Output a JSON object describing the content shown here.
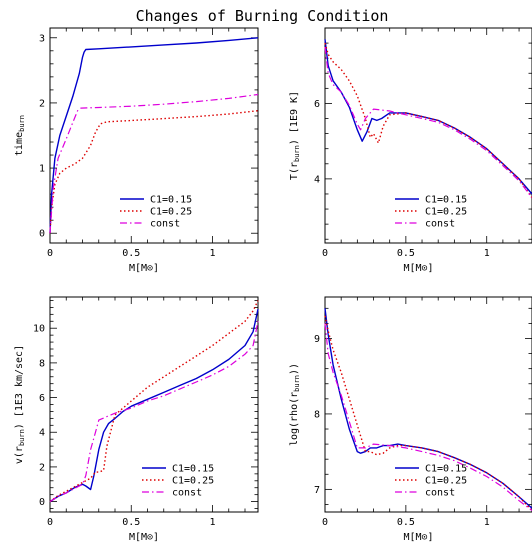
{
  "figure": {
    "title": "Changes of Burning Condition"
  },
  "series_styles": [
    {
      "name": "C1=0.15",
      "color": "#0000cc",
      "dash": "",
      "width": 1.4
    },
    {
      "name": "C1=0.25",
      "color": "#dd0000",
      "dash": "1.5,2.5",
      "width": 1.4
    },
    {
      "name": "const",
      "color": "#dd00dd",
      "dash": "7,3,1.5,3",
      "width": 1.2
    }
  ],
  "chart_data": [
    {
      "type": "line",
      "xlabel": "M[M⊙]",
      "ylabel": "time_burn",
      "xlim": [
        0,
        1.28
      ],
      "ylim": [
        -0.15,
        3.15
      ],
      "xticks": [
        0,
        0.5,
        1
      ],
      "xtick_labels": [
        "0",
        "0.5",
        "1"
      ],
      "yticks": [
        0,
        1,
        2,
        3
      ],
      "ytick_labels": [
        "0",
        "1",
        "2",
        "3"
      ],
      "legend": "bottom-center",
      "series": [
        {
          "name": "C1=0.15",
          "x": [
            0,
            0.01,
            0.03,
            0.06,
            0.1,
            0.14,
            0.18,
            0.2,
            0.21,
            0.22,
            0.3,
            0.5,
            0.7,
            0.9,
            1.1,
            1.28
          ],
          "y": [
            0,
            0.6,
            1.15,
            1.5,
            1.8,
            2.1,
            2.45,
            2.7,
            2.78,
            2.82,
            2.83,
            2.86,
            2.89,
            2.92,
            2.96,
            3.0
          ]
        },
        {
          "name": "C1=0.25",
          "x": [
            0,
            0.01,
            0.03,
            0.06,
            0.1,
            0.15,
            0.2,
            0.25,
            0.28,
            0.31,
            0.35,
            0.5,
            0.7,
            0.9,
            1.1,
            1.28
          ],
          "y": [
            0,
            0.4,
            0.75,
            0.92,
            1.0,
            1.06,
            1.15,
            1.35,
            1.55,
            1.68,
            1.71,
            1.73,
            1.76,
            1.79,
            1.83,
            1.88
          ]
        },
        {
          "name": "const",
          "x": [
            0,
            0.02,
            0.05,
            0.1,
            0.14,
            0.17,
            0.19,
            0.3,
            0.5,
            0.7,
            0.9,
            1.1,
            1.28
          ],
          "y": [
            0,
            0.7,
            1.15,
            1.45,
            1.7,
            1.88,
            1.92,
            1.93,
            1.95,
            1.98,
            2.02,
            2.07,
            2.13
          ]
        }
      ]
    },
    {
      "type": "line",
      "xlabel": "M[M⊙]",
      "ylabel": "T(r_burn) [1E9 K]",
      "xlim": [
        0,
        1.28
      ],
      "ylim": [
        2.3,
        8.0
      ],
      "xticks": [
        0,
        0.5,
        1
      ],
      "xtick_labels": [
        "0",
        "0.5",
        "1"
      ],
      "yticks": [
        4,
        6
      ],
      "ytick_labels": [
        "4",
        "6"
      ],
      "legend": "bottom-center",
      "series": [
        {
          "name": "C1=0.15",
          "x": [
            0,
            0.02,
            0.05,
            0.1,
            0.15,
            0.2,
            0.23,
            0.26,
            0.29,
            0.32,
            0.35,
            0.4,
            0.5,
            0.6,
            0.7,
            0.8,
            0.9,
            1.0,
            1.1,
            1.2,
            1.28
          ],
          "y": [
            7.7,
            7.0,
            6.6,
            6.3,
            5.9,
            5.3,
            5.0,
            5.25,
            5.6,
            5.55,
            5.6,
            5.75,
            5.75,
            5.65,
            5.55,
            5.35,
            5.1,
            4.8,
            4.4,
            4.0,
            3.6
          ]
        },
        {
          "name": "C1=0.25",
          "x": [
            0,
            0.02,
            0.05,
            0.1,
            0.15,
            0.2,
            0.25,
            0.28,
            0.3,
            0.33,
            0.36,
            0.4,
            0.5,
            0.6,
            0.7,
            0.8,
            0.9,
            1.0,
            1.1,
            1.2,
            1.28
          ],
          "y": [
            7.6,
            7.3,
            7.1,
            6.9,
            6.6,
            6.2,
            5.6,
            5.1,
            5.2,
            4.95,
            5.4,
            5.7,
            5.75,
            5.65,
            5.55,
            5.35,
            5.1,
            4.8,
            4.4,
            4.0,
            3.5
          ]
        },
        {
          "name": "const",
          "x": [
            0,
            0.02,
            0.05,
            0.1,
            0.15,
            0.2,
            0.22,
            0.25,
            0.3,
            0.4,
            0.5,
            0.6,
            0.7,
            0.8,
            0.9,
            1.0,
            1.1,
            1.2,
            1.28
          ],
          "y": [
            7.5,
            6.8,
            6.5,
            6.3,
            5.95,
            5.45,
            5.3,
            5.6,
            5.85,
            5.8,
            5.7,
            5.6,
            5.5,
            5.3,
            5.05,
            4.75,
            4.35,
            3.95,
            3.5
          ]
        }
      ]
    },
    {
      "type": "line",
      "xlabel": "M[M⊙]",
      "ylabel": "v(r_burn) [1E3 km/sec]",
      "xlim": [
        0,
        1.28
      ],
      "ylim": [
        -0.6,
        11.8
      ],
      "xticks": [
        0,
        0.5,
        1
      ],
      "xtick_labels": [
        "0",
        "0.5",
        "1"
      ],
      "yticks": [
        0,
        2,
        4,
        6,
        8,
        10
      ],
      "ytick_labels": [
        "0",
        "2",
        "4",
        "6",
        "8",
        "10"
      ],
      "legend": "bottom-right",
      "series": [
        {
          "name": "C1=0.15",
          "x": [
            0,
            0.05,
            0.1,
            0.15,
            0.2,
            0.22,
            0.25,
            0.27,
            0.3,
            0.33,
            0.36,
            0.4,
            0.45,
            0.5,
            0.6,
            0.7,
            0.8,
            0.9,
            1.0,
            1.1,
            1.2,
            1.25,
            1.28
          ],
          "y": [
            0,
            0.3,
            0.5,
            0.8,
            1.0,
            0.9,
            0.7,
            1.5,
            3.0,
            4.0,
            4.5,
            4.8,
            5.2,
            5.5,
            5.9,
            6.3,
            6.7,
            7.1,
            7.6,
            8.2,
            9.0,
            9.8,
            11.1
          ]
        },
        {
          "name": "C1=0.25",
          "x": [
            0,
            0.05,
            0.1,
            0.15,
            0.2,
            0.25,
            0.28,
            0.3,
            0.33,
            0.35,
            0.4,
            0.45,
            0.5,
            0.6,
            0.7,
            0.8,
            0.9,
            1.0,
            1.1,
            1.2,
            1.25,
            1.28
          ],
          "y": [
            0,
            0.35,
            0.6,
            0.85,
            1.1,
            1.35,
            1.7,
            1.7,
            1.8,
            3.2,
            5.0,
            5.4,
            5.8,
            6.6,
            7.2,
            7.8,
            8.4,
            9.0,
            9.7,
            10.4,
            11.0,
            11.6
          ]
        },
        {
          "name": "const",
          "x": [
            0,
            0.05,
            0.1,
            0.15,
            0.2,
            0.22,
            0.25,
            0.28,
            0.3,
            0.35,
            0.4,
            0.5,
            0.6,
            0.7,
            0.8,
            0.9,
            1.0,
            1.1,
            1.2,
            1.25,
            1.28
          ],
          "y": [
            0,
            0.3,
            0.5,
            0.75,
            1.0,
            1.5,
            3.0,
            4.0,
            4.7,
            4.9,
            5.1,
            5.4,
            5.8,
            6.1,
            6.5,
            6.9,
            7.3,
            7.8,
            8.5,
            9.0,
            10.4
          ]
        }
      ]
    },
    {
      "type": "line",
      "xlabel": "M[M⊙]",
      "ylabel": "log(rho(r_burn))",
      "xlim": [
        0,
        1.28
      ],
      "ylim": [
        6.7,
        9.55
      ],
      "xticks": [
        0,
        0.5,
        1
      ],
      "xtick_labels": [
        "0",
        "0.5",
        "1"
      ],
      "yticks": [
        7,
        8,
        9
      ],
      "ytick_labels": [
        "7",
        "8",
        "9"
      ],
      "legend": "bottom-center",
      "series": [
        {
          "name": "C1=0.15",
          "x": [
            0,
            0.02,
            0.05,
            0.1,
            0.15,
            0.2,
            0.22,
            0.25,
            0.28,
            0.32,
            0.36,
            0.4,
            0.45,
            0.5,
            0.6,
            0.7,
            0.8,
            0.9,
            1.0,
            1.1,
            1.2,
            1.28
          ],
          "y": [
            9.4,
            9.05,
            8.65,
            8.2,
            7.8,
            7.5,
            7.48,
            7.5,
            7.55,
            7.55,
            7.58,
            7.58,
            7.6,
            7.58,
            7.55,
            7.5,
            7.42,
            7.33,
            7.22,
            7.08,
            6.9,
            6.75
          ]
        },
        {
          "name": "C1=0.25",
          "x": [
            0,
            0.02,
            0.05,
            0.1,
            0.15,
            0.2,
            0.25,
            0.28,
            0.32,
            0.36,
            0.4,
            0.45,
            0.5,
            0.6,
            0.7,
            0.8,
            0.9,
            1.0,
            1.1,
            1.2,
            1.28
          ],
          "y": [
            9.3,
            9.1,
            8.85,
            8.55,
            8.2,
            7.85,
            7.5,
            7.5,
            7.46,
            7.48,
            7.55,
            7.58,
            7.58,
            7.55,
            7.5,
            7.42,
            7.33,
            7.22,
            7.08,
            6.9,
            6.72
          ]
        },
        {
          "name": "const",
          "x": [
            0,
            0.02,
            0.05,
            0.1,
            0.15,
            0.2,
            0.25,
            0.3,
            0.4,
            0.5,
            0.6,
            0.7,
            0.8,
            0.9,
            1.0,
            1.1,
            1.2,
            1.28
          ],
          "y": [
            9.2,
            8.8,
            8.55,
            8.25,
            7.9,
            7.55,
            7.55,
            7.6,
            7.58,
            7.55,
            7.5,
            7.45,
            7.38,
            7.28,
            7.17,
            7.03,
            6.85,
            6.72
          ]
        }
      ]
    }
  ]
}
